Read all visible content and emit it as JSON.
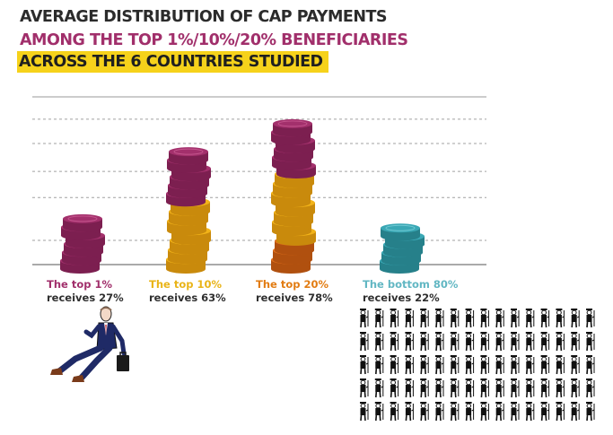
{
  "title": {
    "line1": "AVERAGE DISTRIBUTION OF CAP PAYMENTS",
    "line2": "AMONG THE TOP 1%/10%/20% BENEFICIARIES",
    "line3": "ACROSS THE 6 COUNTRIES STUDIED"
  },
  "colors": {
    "title_dark": "#2b2b2b",
    "title_magenta": "#a12f6b",
    "highlight_yellow": "#f6d21b",
    "coin_magenta": "#a3306c",
    "coin_gold": "#f2b319",
    "coin_orange": "#e2701c",
    "coin_teal": "#3aa8b5",
    "label_magenta": "#a12f6b",
    "label_gold": "#e9b418",
    "label_orange": "#e27c12",
    "label_teal": "#62b7c3"
  },
  "chart_data": {
    "type": "bar",
    "categories": [
      "The top 1%",
      "The top 10%",
      "The top 20%",
      "The bottom 80%"
    ],
    "values": [
      27,
      63,
      78,
      22
    ],
    "unit": "%",
    "ylim": [
      0,
      90
    ],
    "grid": true,
    "bars": [
      {
        "name": "The top 1%",
        "receives": "receives 27%",
        "value": 27,
        "label_color": "#a12f6b",
        "segments": [
          {
            "color": "magenta",
            "value": 27
          }
        ]
      },
      {
        "name": "The top 10%",
        "receives": "receives 63%",
        "value": 63,
        "label_color": "#e9b418",
        "segments": [
          {
            "color": "gold",
            "value": 36
          },
          {
            "color": "magenta",
            "value": 27
          }
        ]
      },
      {
        "name": "The top 20%",
        "receives": "receives 78%",
        "value": 78,
        "label_color": "#e27c12",
        "segments": [
          {
            "color": "orange",
            "value": 15
          },
          {
            "color": "gold",
            "value": 36
          },
          {
            "color": "magenta",
            "value": 27
          }
        ]
      },
      {
        "name": "The bottom 80%",
        "receives": "receives 22%",
        "value": 22,
        "label_color": "#62b7c3",
        "segments": [
          {
            "color": "teal",
            "value": 22
          }
        ]
      }
    ]
  },
  "illustrations": {
    "rich_man": "businessman-with-briefcase-icon",
    "crowd": "people-crowd-icon",
    "crowd_rows": 5,
    "crowd_cols": 16
  }
}
